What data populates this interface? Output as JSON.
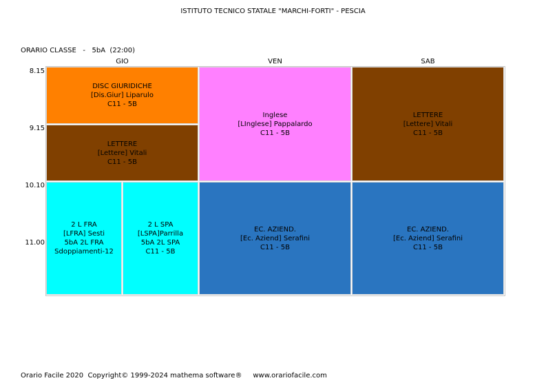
{
  "header": {
    "school": "ISTITUTO TECNICO STATALE \"MARCHI-FORTI\" - PESCIA",
    "class_line": "ORARIO CLASSE   -   5bA  (22:00)"
  },
  "days": [
    "GIO",
    "VEN",
    "SAB"
  ],
  "times": [
    "8.15",
    "9.15",
    "10.10",
    "11.00"
  ],
  "colors": {
    "orange": "#ff8000",
    "brown": "#804000",
    "pink": "#ff80ff",
    "cyan": "#00ffff",
    "blue": "#2a75c0"
  },
  "cells": {
    "gio_1": {
      "lines": [
        "DISC GIURIDICHE",
        "[Dis.Giur] Liparulo",
        "C11 - 5B"
      ]
    },
    "gio_2": {
      "lines": [
        "LETTERE",
        "[Lettere] Vitali",
        "C11 - 5B"
      ]
    },
    "gio_3a": {
      "lines": [
        "2 L FRA",
        "[LFRA] Sesti",
        "5bA 2L FRA",
        "Sdoppiamenti-12"
      ]
    },
    "gio_3b": {
      "lines": [
        "2 L SPA",
        "[LSPA]Parrilla",
        "5bA 2L SPA",
        "C11 - 5B"
      ]
    },
    "ven_1": {
      "lines": [
        "Inglese",
        "[LInglese] Pappalardo",
        "C11 - 5B"
      ]
    },
    "ven_2": {
      "lines": [
        "EC. AZIEND.",
        "[Ec. Aziend] Serafini",
        "C11 - 5B"
      ]
    },
    "sab_1": {
      "lines": [
        "LETTERE",
        "[Lettere] Vitali",
        "C11 - 5B"
      ]
    },
    "sab_2": {
      "lines": [
        "EC. AZIEND.",
        "[Ec. Aziend] Serafini",
        "C11 - 5B"
      ]
    }
  },
  "footer": "Orario Facile 2020  Copyright© 1999-2024 mathema software®     www.orariofacile.com"
}
